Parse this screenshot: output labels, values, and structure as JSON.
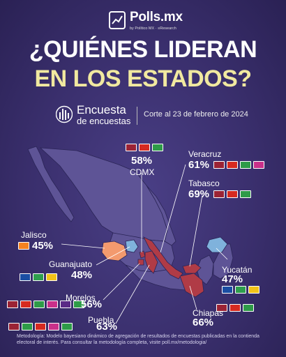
{
  "brand": {
    "name": "Polls.mx",
    "tagline": "by Político MX · ≡Research"
  },
  "title": {
    "line1": "¿QUIÉNES LIDERAN",
    "line2": "EN LOS ESTADOS?"
  },
  "source": {
    "name": "Encuesta",
    "sub": "de encuestas",
    "corte": "Corte al 23 de febrero de 2024"
  },
  "colors": {
    "morena": "#9b2335",
    "pt": "#d62a20",
    "pvem": "#2e9b48",
    "mc": "#f58220",
    "pan": "#1a4ea3",
    "pri": "#2f9e4e",
    "prd": "#f2c318",
    "pes": "#5a2a86",
    "rsp": "#c9308a"
  },
  "chart_data": {
    "type": "table",
    "states": [
      {
        "state": "CDMX",
        "value": 58,
        "label": "58%",
        "leader": "morena",
        "coalition": [
          "morena",
          "pt",
          "pvem"
        ]
      },
      {
        "state": "Veracruz",
        "value": 61,
        "label": "61%",
        "leader": "morena",
        "coalition": [
          "morena",
          "pt",
          "pvem",
          "rsp"
        ]
      },
      {
        "state": "Tabasco",
        "value": 69,
        "label": "69%",
        "leader": "morena",
        "coalition": [
          "morena",
          "pt",
          "pvem"
        ]
      },
      {
        "state": "Jalisco",
        "value": 45,
        "label": "45%",
        "leader": "mc",
        "coalition": [
          "mc"
        ]
      },
      {
        "state": "Guanajuato",
        "value": 48,
        "label": "48%",
        "leader": "pan",
        "coalition": [
          "pan",
          "pri",
          "prd"
        ]
      },
      {
        "state": "Yucatán",
        "value": 47,
        "label": "47%",
        "leader": "pan",
        "coalition": [
          "pan",
          "pri",
          "prd"
        ]
      },
      {
        "state": "Morelos",
        "value": 56,
        "label": "56%",
        "leader": "morena",
        "coalition": [
          "morena",
          "pt",
          "pvem",
          "rsp",
          "pes",
          "pvem"
        ]
      },
      {
        "state": "Chiapas",
        "value": 66,
        "label": "66%",
        "leader": "morena",
        "coalition": [
          "morena",
          "pt",
          "pvem"
        ]
      },
      {
        "state": "Puebla",
        "value": 63,
        "label": "63%",
        "leader": "morena",
        "coalition": [
          "morena",
          "pvem",
          "pt",
          "rsp",
          "pvem"
        ]
      }
    ]
  },
  "footnote": "Metodología: Modelo bayesiano dinámico de agregación de resultados de encuestas publicadas en la contienda electoral de interés. Para consultar la metodología completa, visite poll.mx/metodologia/"
}
